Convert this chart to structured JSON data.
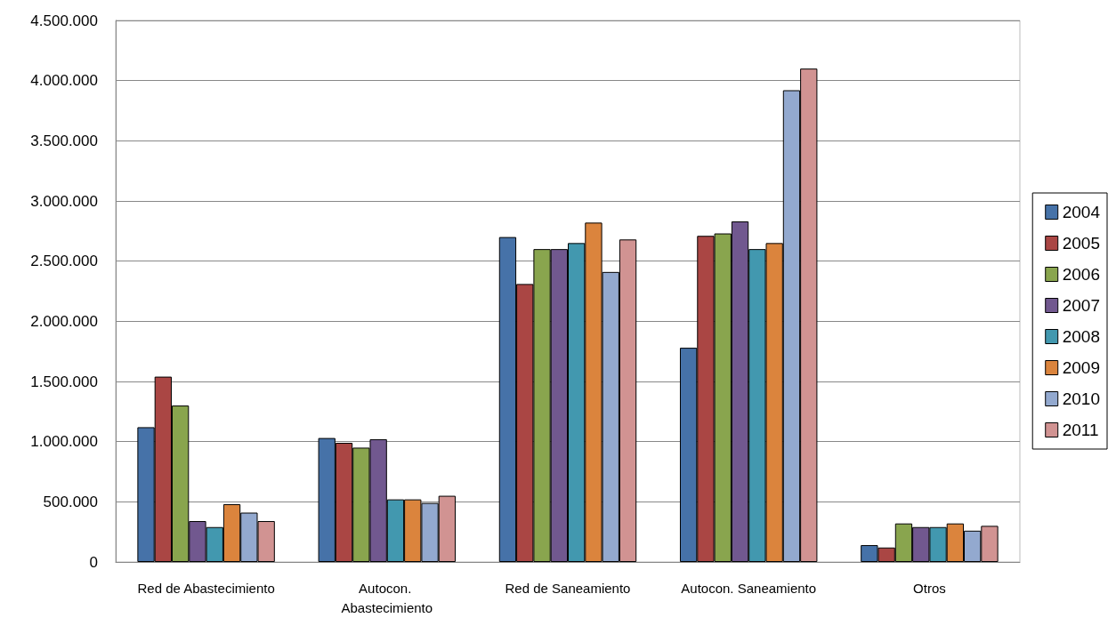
{
  "chart_data": {
    "type": "bar",
    "categories": [
      "Red de Abastecimiento",
      "Autocon. Abastecimiento",
      "Red de Saneamiento",
      "Autocon. Saneamiento",
      "Otros"
    ],
    "series": [
      {
        "name": "2004",
        "color": "#4672a8",
        "values": [
          1120000,
          1030000,
          2700000,
          1780000,
          140000
        ]
      },
      {
        "name": "2005",
        "color": "#aa4644",
        "values": [
          1540000,
          990000,
          2310000,
          2710000,
          120000
        ]
      },
      {
        "name": "2006",
        "color": "#89a54e",
        "values": [
          1300000,
          950000,
          2600000,
          2730000,
          320000
        ]
      },
      {
        "name": "2007",
        "color": "#71588f",
        "values": [
          340000,
          1020000,
          2600000,
          2830000,
          290000
        ]
      },
      {
        "name": "2008",
        "color": "#4298af",
        "values": [
          290000,
          520000,
          2650000,
          2600000,
          290000
        ]
      },
      {
        "name": "2009",
        "color": "#db843d",
        "values": [
          480000,
          520000,
          2820000,
          2650000,
          320000
        ]
      },
      {
        "name": "2010",
        "color": "#93a9cf",
        "values": [
          410000,
          490000,
          2410000,
          3920000,
          260000
        ]
      },
      {
        "name": "2011",
        "color": "#d19392",
        "values": [
          340000,
          550000,
          2680000,
          4100000,
          300000
        ]
      }
    ],
    "ylim": [
      0,
      4500000
    ],
    "yticks": [
      0,
      {
        "value": 500000,
        "label": "500.000"
      },
      {
        "value": 1000000,
        "label": "1.000.000"
      },
      {
        "value": 1500000,
        "label": "1.500.000"
      },
      {
        "value": 2000000,
        "label": "2.000.000"
      },
      {
        "value": 2500000,
        "label": "2.500.000"
      },
      {
        "value": 3000000,
        "label": "3.000.000"
      },
      {
        "value": 3500000,
        "label": "3.500.000"
      },
      {
        "value": 4000000,
        "label": "4.000.000"
      },
      {
        "value": 4500000,
        "label": "4.500.000"
      }
    ],
    "grid": "y",
    "legend": "right"
  }
}
